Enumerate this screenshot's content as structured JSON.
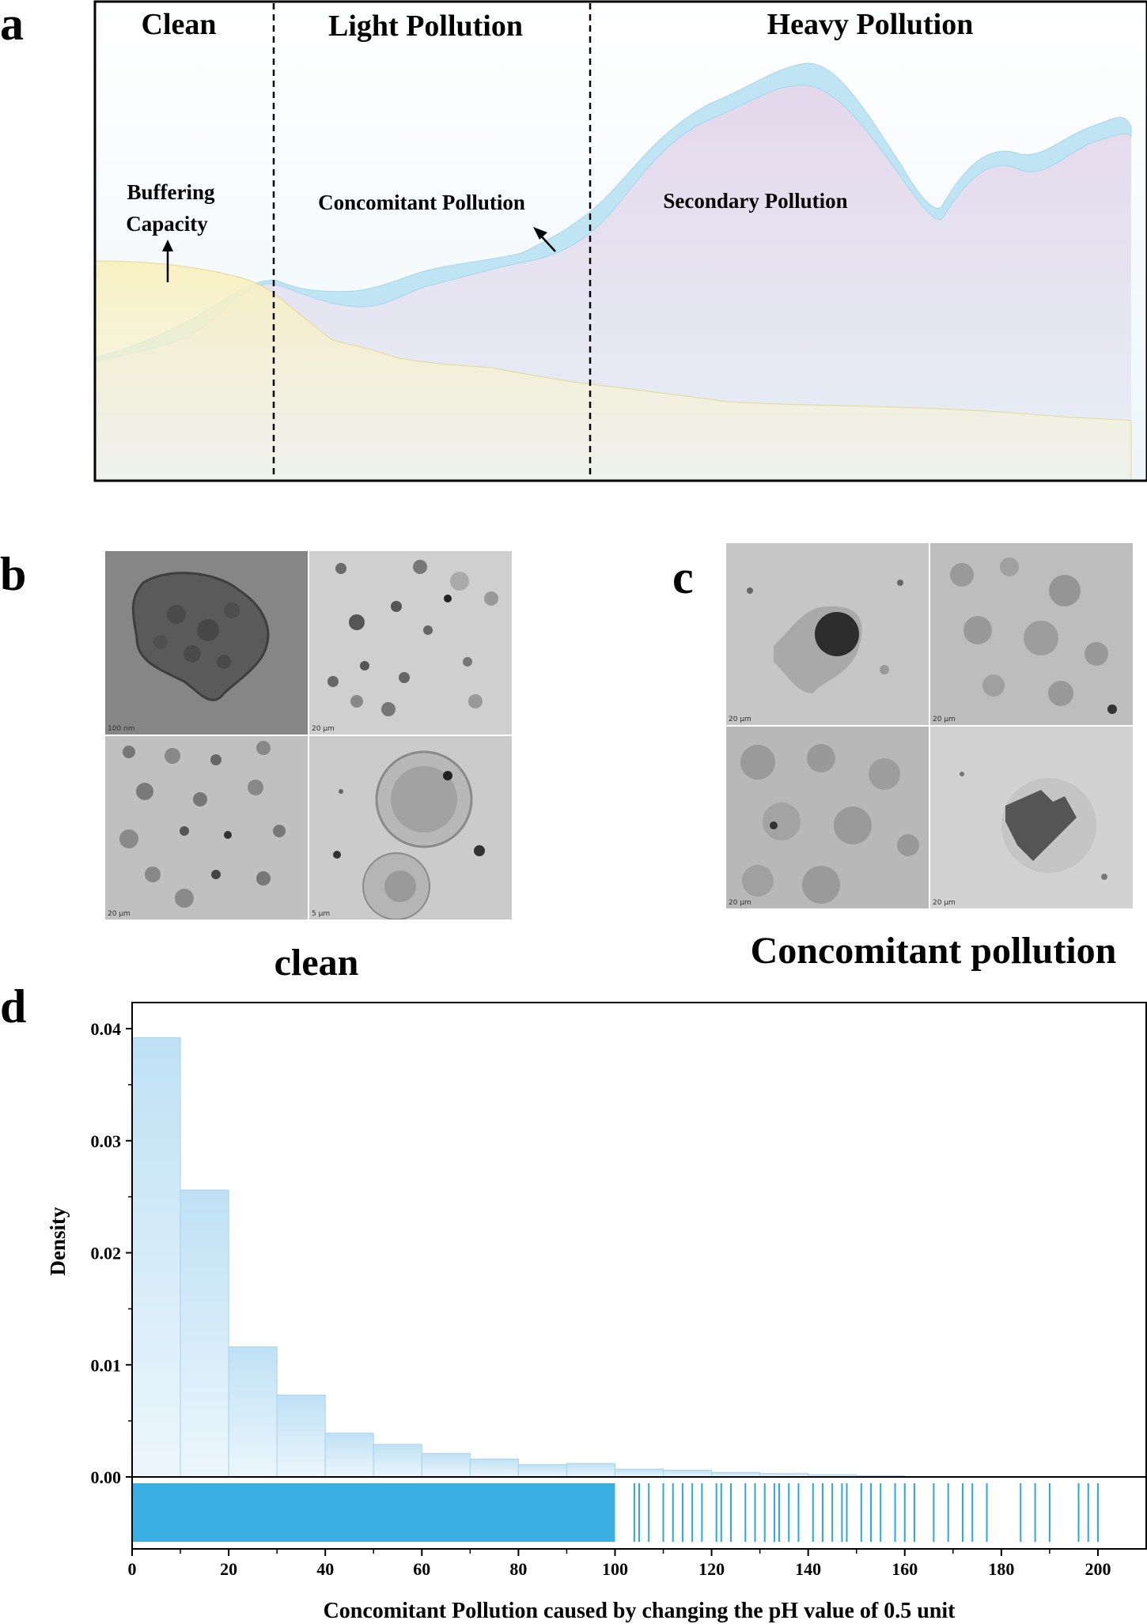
{
  "panels": {
    "a": "a",
    "b": "b",
    "c": "c",
    "d": "d"
  },
  "panel_a": {
    "zones": [
      "Clean",
      "Light Pollution",
      "Heavy Pollution"
    ],
    "annotations": {
      "buffering_line1": "Buffering",
      "buffering_line2": "Capacity",
      "concomitant": "Concomitant Pollution",
      "secondary": "Secondary Pollution"
    },
    "colors": {
      "buffer_fill": "#f7f0c4",
      "pollution_fill": "#ddd8ee",
      "band_fill": "#bfe4f4",
      "frame": "#000000"
    }
  },
  "panel_b": {
    "caption": "clean",
    "scale_labels": [
      "100 nm",
      "20 μm",
      "20 μm",
      "5 μm"
    ]
  },
  "panel_c": {
    "caption": "Concomitant pollution",
    "scale_labels": [
      "20 μm",
      "20 μm",
      "20 μm",
      "20 μm"
    ]
  },
  "chart_data": {
    "type": "bar",
    "xlabel": "Concomitant Pollution caused by changing the pH value of 0.5 unit",
    "ylabel": "Density",
    "bin_edges": [
      0,
      10,
      20,
      30,
      40,
      50,
      60,
      70,
      80,
      90,
      100,
      110,
      120,
      130,
      140,
      150,
      160
    ],
    "values": [
      0.0392,
      0.0256,
      0.0116,
      0.0073,
      0.0039,
      0.0029,
      0.0021,
      0.0016,
      0.0011,
      0.0012,
      0.0007,
      0.0006,
      0.0004,
      0.0003,
      0.0002,
      0.0001
    ],
    "xlim": [
      0,
      210
    ],
    "ylim": [
      0,
      0.04
    ],
    "xticks": [
      0,
      20,
      40,
      60,
      80,
      100,
      120,
      140,
      160,
      180,
      200
    ],
    "yticks": [
      "0.00",
      "0.01",
      "0.02",
      "0.03",
      "0.04"
    ],
    "rug_sparse": [
      104,
      105,
      107,
      110,
      112,
      114,
      116,
      118,
      121,
      122,
      124,
      127,
      129,
      131,
      133,
      134,
      136,
      138,
      141,
      143,
      145,
      147,
      148,
      151,
      153,
      155,
      158,
      160,
      162,
      166,
      169,
      172,
      174,
      177,
      184,
      187,
      190,
      196,
      198,
      200
    ],
    "colors": {
      "bar": "#c2e3f6",
      "rug": "#29a8e0"
    }
  }
}
